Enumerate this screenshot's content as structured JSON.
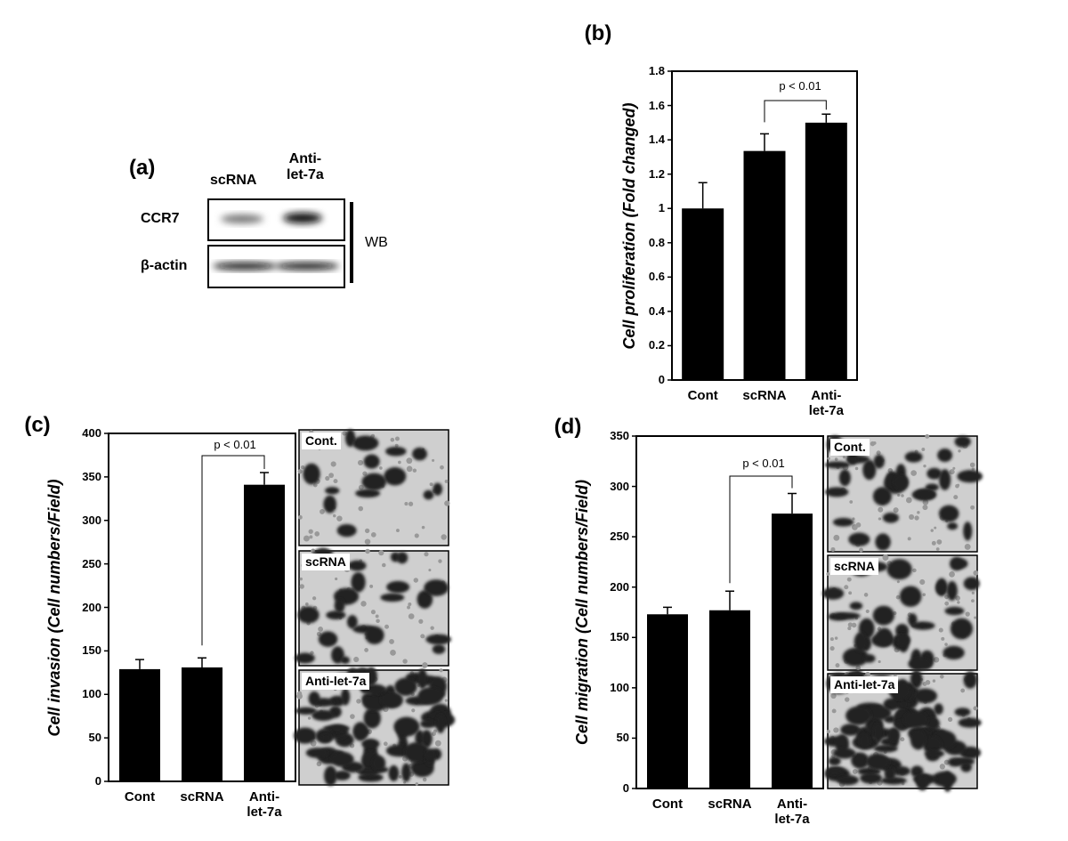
{
  "blot": {
    "label": "(a)",
    "lanes": [
      "scRNA",
      "Anti-\nlet-7a"
    ],
    "rows": [
      "CCR7",
      "β-actin"
    ],
    "method": "WB"
  },
  "chart_data": [
    {
      "type": "bar",
      "panel_label": "(b)",
      "y_label": "Cell proliferation (Fold changed)",
      "categories": [
        "Cont",
        "scRNA",
        "Anti-\nlet-7a"
      ],
      "values": [
        1.0,
        1.335,
        1.5
      ],
      "errors": [
        0.15,
        0.1,
        0.05
      ],
      "color": "#000000",
      "ylim": [
        0,
        1.8
      ],
      "yticks": [
        0,
        0.2,
        0.4,
        0.6,
        0.8,
        1,
        1.2,
        1.4,
        1.6,
        1.8
      ],
      "annotation": "p < 0.01"
    },
    {
      "type": "bar",
      "panel_label": "(c)",
      "y_label": "Cell invasion (Cell numbers/Field)",
      "categories": [
        "Cont",
        "scRNA",
        "Anti-\nlet-7a"
      ],
      "values": [
        129,
        131,
        341
      ],
      "errors": [
        11,
        11,
        14
      ],
      "color": "#000000",
      "ylim": [
        0,
        400
      ],
      "yticks": [
        0,
        50,
        100,
        150,
        200,
        250,
        300,
        350,
        400
      ],
      "annotation": "p < 0.01",
      "images": [
        "Cont.",
        "scRNA",
        "Anti-let-7a"
      ]
    },
    {
      "type": "bar",
      "panel_label": "(d)",
      "y_label": "Cell migration (Cell numbers/Field)",
      "categories": [
        "Cont",
        "scRNA",
        "Anti-\nlet-7a"
      ],
      "values": [
        173,
        177,
        273
      ],
      "errors": [
        7,
        19,
        20
      ],
      "color": "#000000",
      "ylim": [
        0,
        350
      ],
      "yticks": [
        0,
        50,
        100,
        150,
        200,
        250,
        300,
        350
      ],
      "annotation": "p < 0.01",
      "images": [
        "Cont.",
        "scRNA",
        "Anti-let-7a"
      ]
    }
  ]
}
